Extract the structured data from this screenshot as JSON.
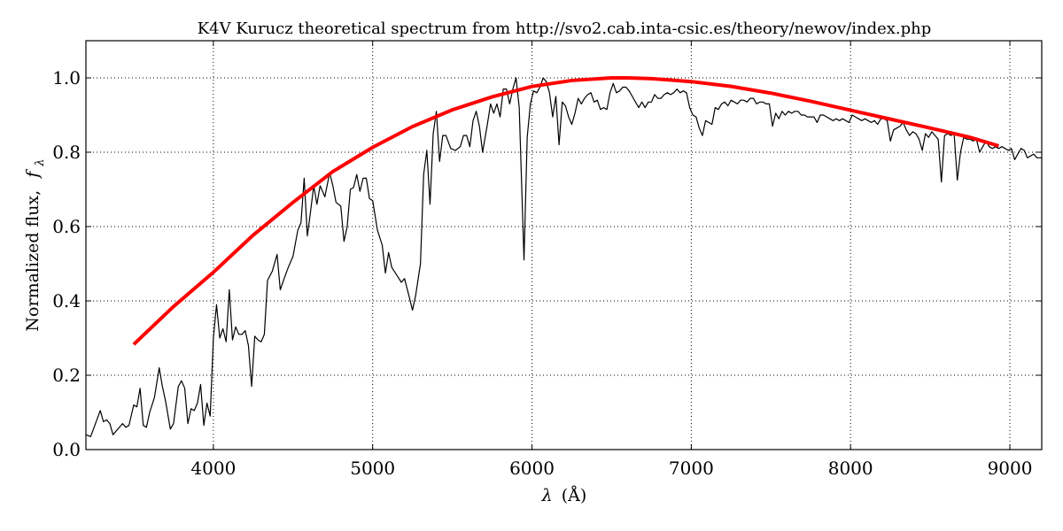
{
  "chart_data": {
    "type": "line",
    "title": "K4V Kurucz theoretical spectrum from http://svo2.cab.inta-csic.es/theory/newov/index.php",
    "xlabel_symbol": "λ",
    "xlabel_unit": "(Å)",
    "ylabel_text": "Normalized flux,",
    "ylabel_symbol": "f",
    "ylabel_sub": "λ",
    "xlim": [
      3200,
      9200
    ],
    "ylim": [
      0.0,
      1.1
    ],
    "x_ticks": [
      4000,
      5000,
      6000,
      7000,
      8000,
      9000
    ],
    "x_tick_labels": [
      "4000",
      "5000",
      "6000",
      "7000",
      "8000",
      "9000"
    ],
    "y_ticks": [
      0.0,
      0.2,
      0.4,
      0.6,
      0.8,
      1.0
    ],
    "y_tick_labels": [
      "0.0",
      "0.2",
      "0.4",
      "0.6",
      "0.8",
      "1.0"
    ],
    "grid": true,
    "series": [
      {
        "color": "#000000",
        "points": [
          [
            3200,
            0.04
          ],
          [
            3230,
            0.035
          ],
          [
            3260,
            0.07
          ],
          [
            3290,
            0.105
          ],
          [
            3310,
            0.075
          ],
          [
            3330,
            0.08
          ],
          [
            3350,
            0.07
          ],
          [
            3370,
            0.04
          ],
          [
            3400,
            0.055
          ],
          [
            3430,
            0.07
          ],
          [
            3450,
            0.06
          ],
          [
            3470,
            0.065
          ],
          [
            3500,
            0.12
          ],
          [
            3520,
            0.115
          ],
          [
            3540,
            0.165
          ],
          [
            3560,
            0.065
          ],
          [
            3580,
            0.06
          ],
          [
            3600,
            0.1
          ],
          [
            3630,
            0.14
          ],
          [
            3660,
            0.22
          ],
          [
            3680,
            0.17
          ],
          [
            3700,
            0.13
          ],
          [
            3730,
            0.055
          ],
          [
            3750,
            0.07
          ],
          [
            3780,
            0.17
          ],
          [
            3800,
            0.185
          ],
          [
            3820,
            0.165
          ],
          [
            3840,
            0.07
          ],
          [
            3860,
            0.11
          ],
          [
            3880,
            0.105
          ],
          [
            3900,
            0.125
          ],
          [
            3920,
            0.175
          ],
          [
            3940,
            0.065
          ],
          [
            3960,
            0.125
          ],
          [
            3980,
            0.09
          ],
          [
            4000,
            0.3
          ],
          [
            4020,
            0.39
          ],
          [
            4040,
            0.3
          ],
          [
            4060,
            0.325
          ],
          [
            4080,
            0.29
          ],
          [
            4100,
            0.43
          ],
          [
            4120,
            0.295
          ],
          [
            4140,
            0.33
          ],
          [
            4160,
            0.31
          ],
          [
            4180,
            0.31
          ],
          [
            4200,
            0.32
          ],
          [
            4220,
            0.28
          ],
          [
            4240,
            0.17
          ],
          [
            4260,
            0.305
          ],
          [
            4280,
            0.295
          ],
          [
            4300,
            0.29
          ],
          [
            4320,
            0.31
          ],
          [
            4340,
            0.455
          ],
          [
            4370,
            0.48
          ],
          [
            4400,
            0.525
          ],
          [
            4420,
            0.43
          ],
          [
            4440,
            0.455
          ],
          [
            4470,
            0.49
          ],
          [
            4500,
            0.52
          ],
          [
            4530,
            0.59
          ],
          [
            4550,
            0.61
          ],
          [
            4570,
            0.73
          ],
          [
            4590,
            0.575
          ],
          [
            4610,
            0.64
          ],
          [
            4630,
            0.71
          ],
          [
            4650,
            0.66
          ],
          [
            4670,
            0.71
          ],
          [
            4700,
            0.68
          ],
          [
            4730,
            0.745
          ],
          [
            4750,
            0.71
          ],
          [
            4770,
            0.665
          ],
          [
            4800,
            0.655
          ],
          [
            4820,
            0.56
          ],
          [
            4840,
            0.6
          ],
          [
            4860,
            0.7
          ],
          [
            4880,
            0.705
          ],
          [
            4900,
            0.74
          ],
          [
            4920,
            0.695
          ],
          [
            4940,
            0.73
          ],
          [
            4960,
            0.73
          ],
          [
            4980,
            0.675
          ],
          [
            5000,
            0.67
          ],
          [
            5030,
            0.59
          ],
          [
            5060,
            0.55
          ],
          [
            5080,
            0.475
          ],
          [
            5100,
            0.53
          ],
          [
            5120,
            0.49
          ],
          [
            5150,
            0.47
          ],
          [
            5180,
            0.45
          ],
          [
            5200,
            0.46
          ],
          [
            5230,
            0.41
          ],
          [
            5250,
            0.375
          ],
          [
            5270,
            0.415
          ],
          [
            5300,
            0.5
          ],
          [
            5320,
            0.74
          ],
          [
            5340,
            0.805
          ],
          [
            5360,
            0.66
          ],
          [
            5380,
            0.85
          ],
          [
            5400,
            0.91
          ],
          [
            5420,
            0.775
          ],
          [
            5440,
            0.845
          ],
          [
            5460,
            0.845
          ],
          [
            5490,
            0.81
          ],
          [
            5520,
            0.805
          ],
          [
            5550,
            0.815
          ],
          [
            5570,
            0.845
          ],
          [
            5590,
            0.845
          ],
          [
            5610,
            0.815
          ],
          [
            5630,
            0.885
          ],
          [
            5650,
            0.91
          ],
          [
            5670,
            0.87
          ],
          [
            5690,
            0.8
          ],
          [
            5720,
            0.875
          ],
          [
            5740,
            0.93
          ],
          [
            5760,
            0.905
          ],
          [
            5780,
            0.93
          ],
          [
            5800,
            0.895
          ],
          [
            5820,
            0.97
          ],
          [
            5840,
            0.97
          ],
          [
            5860,
            0.93
          ],
          [
            5880,
            0.97
          ],
          [
            5900,
            1.0
          ],
          [
            5920,
            0.92
          ],
          [
            5950,
            0.51
          ],
          [
            5970,
            0.84
          ],
          [
            5990,
            0.93
          ],
          [
            6010,
            0.965
          ],
          [
            6030,
            0.96
          ],
          [
            6050,
            0.975
          ],
          [
            6070,
            1.0
          ],
          [
            6090,
            0.99
          ],
          [
            6110,
            0.96
          ],
          [
            6130,
            0.895
          ],
          [
            6150,
            0.95
          ],
          [
            6170,
            0.82
          ],
          [
            6190,
            0.935
          ],
          [
            6210,
            0.925
          ],
          [
            6230,
            0.895
          ],
          [
            6250,
            0.875
          ],
          [
            6270,
            0.905
          ],
          [
            6290,
            0.945
          ],
          [
            6310,
            0.93
          ],
          [
            6330,
            0.945
          ],
          [
            6350,
            0.955
          ],
          [
            6370,
            0.96
          ],
          [
            6390,
            0.935
          ],
          [
            6410,
            0.94
          ],
          [
            6430,
            0.915
          ],
          [
            6450,
            0.92
          ],
          [
            6470,
            0.915
          ],
          [
            6490,
            0.96
          ],
          [
            6510,
            0.985
          ],
          [
            6530,
            0.96
          ],
          [
            6550,
            0.965
          ],
          [
            6570,
            0.975
          ],
          [
            6590,
            0.975
          ],
          [
            6610,
            0.965
          ],
          [
            6630,
            0.95
          ],
          [
            6650,
            0.935
          ],
          [
            6670,
            0.92
          ],
          [
            6690,
            0.935
          ],
          [
            6710,
            0.92
          ],
          [
            6730,
            0.935
          ],
          [
            6750,
            0.935
          ],
          [
            6770,
            0.955
          ],
          [
            6790,
            0.945
          ],
          [
            6810,
            0.945
          ],
          [
            6830,
            0.955
          ],
          [
            6850,
            0.96
          ],
          [
            6870,
            0.955
          ],
          [
            6890,
            0.96
          ],
          [
            6910,
            0.97
          ],
          [
            6930,
            0.96
          ],
          [
            6950,
            0.965
          ],
          [
            6970,
            0.96
          ],
          [
            6990,
            0.92
          ],
          [
            7010,
            0.9
          ],
          [
            7030,
            0.895
          ],
          [
            7050,
            0.865
          ],
          [
            7070,
            0.845
          ],
          [
            7090,
            0.885
          ],
          [
            7110,
            0.88
          ],
          [
            7130,
            0.875
          ],
          [
            7150,
            0.92
          ],
          [
            7170,
            0.915
          ],
          [
            7190,
            0.93
          ],
          [
            7210,
            0.935
          ],
          [
            7230,
            0.925
          ],
          [
            7250,
            0.94
          ],
          [
            7270,
            0.935
          ],
          [
            7290,
            0.93
          ],
          [
            7310,
            0.94
          ],
          [
            7330,
            0.94
          ],
          [
            7350,
            0.935
          ],
          [
            7370,
            0.945
          ],
          [
            7390,
            0.945
          ],
          [
            7410,
            0.93
          ],
          [
            7430,
            0.935
          ],
          [
            7450,
            0.935
          ],
          [
            7470,
            0.93
          ],
          [
            7490,
            0.93
          ],
          [
            7510,
            0.87
          ],
          [
            7530,
            0.905
          ],
          [
            7550,
            0.89
          ],
          [
            7570,
            0.91
          ],
          [
            7590,
            0.9
          ],
          [
            7610,
            0.91
          ],
          [
            7630,
            0.905
          ],
          [
            7650,
            0.91
          ],
          [
            7670,
            0.91
          ],
          [
            7690,
            0.9
          ],
          [
            7710,
            0.9
          ],
          [
            7730,
            0.895
          ],
          [
            7750,
            0.895
          ],
          [
            7770,
            0.895
          ],
          [
            7790,
            0.88
          ],
          [
            7810,
            0.9
          ],
          [
            7830,
            0.9
          ],
          [
            7850,
            0.895
          ],
          [
            7870,
            0.89
          ],
          [
            7890,
            0.885
          ],
          [
            7910,
            0.89
          ],
          [
            7930,
            0.885
          ],
          [
            7950,
            0.89
          ],
          [
            7970,
            0.885
          ],
          [
            7990,
            0.88
          ],
          [
            8010,
            0.9
          ],
          [
            8030,
            0.895
          ],
          [
            8050,
            0.89
          ],
          [
            8070,
            0.885
          ],
          [
            8090,
            0.89
          ],
          [
            8110,
            0.885
          ],
          [
            8130,
            0.88
          ],
          [
            8150,
            0.885
          ],
          [
            8170,
            0.875
          ],
          [
            8190,
            0.89
          ],
          [
            8210,
            0.89
          ],
          [
            8230,
            0.885
          ],
          [
            8250,
            0.83
          ],
          [
            8270,
            0.86
          ],
          [
            8290,
            0.865
          ],
          [
            8310,
            0.87
          ],
          [
            8330,
            0.88
          ],
          [
            8350,
            0.86
          ],
          [
            8370,
            0.845
          ],
          [
            8390,
            0.855
          ],
          [
            8410,
            0.85
          ],
          [
            8430,
            0.835
          ],
          [
            8450,
            0.805
          ],
          [
            8470,
            0.85
          ],
          [
            8490,
            0.84
          ],
          [
            8510,
            0.855
          ],
          [
            8530,
            0.845
          ],
          [
            8550,
            0.835
          ],
          [
            8570,
            0.72
          ],
          [
            8590,
            0.845
          ],
          [
            8610,
            0.85
          ],
          [
            8630,
            0.845
          ],
          [
            8650,
            0.85
          ],
          [
            8670,
            0.725
          ],
          [
            8690,
            0.8
          ],
          [
            8710,
            0.84
          ],
          [
            8730,
            0.835
          ],
          [
            8750,
            0.835
          ],
          [
            8770,
            0.83
          ],
          [
            8790,
            0.835
          ],
          [
            8810,
            0.8
          ],
          [
            8830,
            0.815
          ],
          [
            8850,
            0.83
          ],
          [
            8870,
            0.815
          ],
          [
            8890,
            0.81
          ],
          [
            8910,
            0.815
          ],
          [
            8930,
            0.81
          ],
          [
            8950,
            0.815
          ],
          [
            8970,
            0.81
          ],
          [
            8990,
            0.805
          ],
          [
            9010,
            0.81
          ],
          [
            9030,
            0.78
          ],
          [
            9050,
            0.795
          ],
          [
            9070,
            0.81
          ],
          [
            9090,
            0.805
          ],
          [
            9110,
            0.785
          ],
          [
            9130,
            0.79
          ],
          [
            9150,
            0.795
          ],
          [
            9170,
            0.785
          ],
          [
            9200,
            0.785
          ]
        ]
      },
      {
        "color": "#ff0000",
        "points": [
          [
            3500,
            0.283
          ],
          [
            3750,
            0.385
          ],
          [
            4000,
            0.477
          ],
          [
            4250,
            0.577
          ],
          [
            4500,
            0.665
          ],
          [
            4750,
            0.748
          ],
          [
            5000,
            0.813
          ],
          [
            5250,
            0.869
          ],
          [
            5500,
            0.914
          ],
          [
            5750,
            0.949
          ],
          [
            6000,
            0.977
          ],
          [
            6250,
            0.993
          ],
          [
            6500,
            1.0
          ],
          [
            6600,
            1.0
          ],
          [
            6750,
            0.998
          ],
          [
            7000,
            0.99
          ],
          [
            7250,
            0.977
          ],
          [
            7500,
            0.959
          ],
          [
            7750,
            0.937
          ],
          [
            8000,
            0.913
          ],
          [
            8250,
            0.889
          ],
          [
            8500,
            0.865
          ],
          [
            8750,
            0.84
          ],
          [
            8930,
            0.817
          ]
        ]
      }
    ]
  }
}
